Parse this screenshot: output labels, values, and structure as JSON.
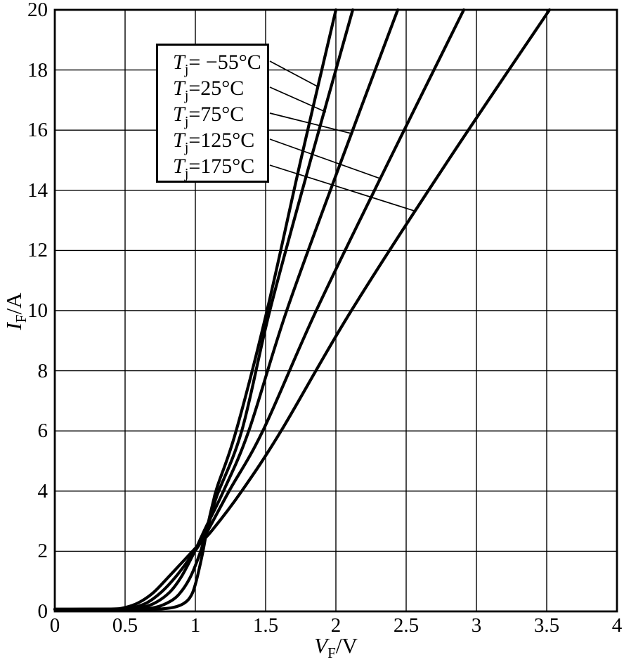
{
  "page": {
    "background": "#ffffff",
    "ink_color": "#000000"
  },
  "chart_data": {
    "type": "line",
    "title": "",
    "xlabel": {
      "symbol": "V",
      "subscript": "F",
      "rest": "/V"
    },
    "ylabel": {
      "symbol": "I",
      "subscript": "F",
      "rest": "/A"
    },
    "xlim": [
      0,
      4
    ],
    "ylim": [
      0,
      20
    ],
    "x_ticks": [
      "0",
      "0.5",
      "1",
      "1.5",
      "2",
      "2.5",
      "3",
      "3.5",
      "4"
    ],
    "y_ticks": [
      "0",
      "2",
      "4",
      "6",
      "8",
      "10",
      "12",
      "14",
      "16",
      "18",
      "20"
    ],
    "grid": true,
    "legend_position": "upper-left-box-with-leader-lines",
    "line_color": "#000000",
    "series": [
      {
        "key": "tj-minus55",
        "name": "Tj = -55 °C",
        "label": {
          "symbol": "T",
          "subscript": "j",
          "rest": "= −55°C"
        },
        "color": "#000000",
        "points": [
          [
            0,
            0.07
          ],
          [
            0.6,
            0.07
          ],
          [
            0.8,
            0.1
          ],
          [
            0.9,
            0.22
          ],
          [
            0.96,
            0.45
          ],
          [
            1.0,
            0.9
          ],
          [
            1.05,
            1.9
          ],
          [
            1.09,
            2.9
          ],
          [
            1.13,
            3.7
          ],
          [
            1.16,
            4.2
          ],
          [
            1.29,
            6
          ],
          [
            1.51,
            10
          ],
          [
            1.75,
            15
          ],
          [
            2.0,
            20
          ]
        ],
        "leader_target": [
          1.87,
          17.45
        ]
      },
      {
        "key": "tj-25",
        "name": "Tj = 25 °C",
        "label": {
          "symbol": "T",
          "subscript": "j",
          "rest": "=25°C"
        },
        "color": "#000000",
        "points": [
          [
            0,
            0.07
          ],
          [
            0.55,
            0.08
          ],
          [
            0.7,
            0.12
          ],
          [
            0.8,
            0.28
          ],
          [
            0.88,
            0.55
          ],
          [
            0.96,
            1.1
          ],
          [
            1.03,
            1.9
          ],
          [
            1.09,
            2.8
          ],
          [
            1.15,
            3.8
          ],
          [
            1.33,
            6
          ],
          [
            1.53,
            10
          ],
          [
            1.82,
            15
          ],
          [
            2.12,
            20
          ]
        ],
        "leader_target": [
          1.93,
          16.6
        ]
      },
      {
        "key": "tj-75",
        "name": "Tj = 75 °C",
        "label": {
          "symbol": "T",
          "subscript": "j",
          "rest": "=75°C"
        },
        "color": "#000000",
        "points": [
          [
            0,
            0.07
          ],
          [
            0.5,
            0.08
          ],
          [
            0.62,
            0.13
          ],
          [
            0.72,
            0.3
          ],
          [
            0.82,
            0.65
          ],
          [
            0.9,
            1.15
          ],
          [
            0.98,
            1.85
          ],
          [
            1.07,
            2.75
          ],
          [
            1.2,
            4
          ],
          [
            1.38,
            6
          ],
          [
            1.65,
            10
          ],
          [
            2.04,
            15
          ],
          [
            2.44,
            20
          ]
        ],
        "leader_target": [
          2.1,
          15.9
        ]
      },
      {
        "key": "tj-125",
        "name": "Tj = 125 °C",
        "label": {
          "symbol": "T",
          "subscript": "j",
          "rest": "=125°C"
        },
        "color": "#000000",
        "points": [
          [
            0,
            0.07
          ],
          [
            0.45,
            0.08
          ],
          [
            0.56,
            0.13
          ],
          [
            0.66,
            0.3
          ],
          [
            0.76,
            0.65
          ],
          [
            0.86,
            1.15
          ],
          [
            0.95,
            1.7
          ],
          [
            1.06,
            2.45
          ],
          [
            1.24,
            4
          ],
          [
            1.48,
            6
          ],
          [
            1.86,
            10
          ],
          [
            2.38,
            15
          ],
          [
            2.91,
            20
          ]
        ],
        "leader_target": [
          2.31,
          14.4
        ]
      },
      {
        "key": "tj-175",
        "name": "Tj = 175 °C",
        "label": {
          "symbol": "T",
          "subscript": "j",
          "rest": "=175°C"
        },
        "color": "#000000",
        "points": [
          [
            0,
            0.07
          ],
          [
            0.4,
            0.08
          ],
          [
            0.5,
            0.13
          ],
          [
            0.6,
            0.3
          ],
          [
            0.7,
            0.62
          ],
          [
            0.8,
            1.1
          ],
          [
            0.9,
            1.6
          ],
          [
            1.0,
            2.1
          ],
          [
            1.12,
            2.7
          ],
          [
            1.33,
            4
          ],
          [
            1.61,
            6
          ],
          [
            2.11,
            10
          ],
          [
            2.8,
            15
          ],
          [
            3.52,
            20
          ]
        ],
        "leader_target": [
          2.57,
          13.3
        ]
      }
    ]
  }
}
